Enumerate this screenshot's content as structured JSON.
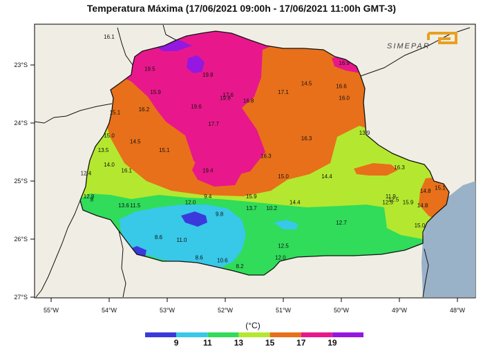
{
  "title": "Temperatura Máxima (17/06/2021 09:00h - 17/06/2021 11:00h GMT-3)",
  "logo": {
    "text": "SIMEPAR",
    "color": "#e8a020"
  },
  "axes": {
    "lat_ticks": [
      "23°S",
      "24°S",
      "25°S",
      "26°S",
      "27°S"
    ],
    "lon_ticks": [
      "55°W",
      "54°W",
      "53°W",
      "52°W",
      "51°W",
      "50°W",
      "49°W",
      "48°W"
    ]
  },
  "colorbar": {
    "unit": "(°C)",
    "tick_labels": [
      "9",
      "11",
      "13",
      "15",
      "17",
      "19"
    ],
    "colors": [
      "#3a3adc",
      "#38c8e8",
      "#30dc5a",
      "#b4e830",
      "#e8701a",
      "#e8188c",
      "#9418e0"
    ]
  },
  "chart_data": {
    "type": "heatmap",
    "title": "Temperatura Máxima (17/06/2021 09:00h - 17/06/2021 11:00h GMT-3)",
    "xlabel": "",
    "ylabel": "",
    "colorbar_unit": "(°C)",
    "xlim": [
      -55.3,
      -47.7
    ],
    "ylim": [
      -27.0,
      -22.5
    ],
    "colorbar_levels": [
      9,
      11,
      13,
      15,
      17,
      19
    ],
    "station_values": [
      {
        "lon": -53.3,
        "lat": -23.1,
        "value": "19.5"
      },
      {
        "lon": -52.3,
        "lat": -23.2,
        "value": "19.8"
      },
      {
        "lon": -53.2,
        "lat": -23.5,
        "value": "15.9"
      },
      {
        "lon": -51.95,
        "lat": -23.55,
        "value": "17.6"
      },
      {
        "lon": -52.0,
        "lat": -23.6,
        "value": "19.8"
      },
      {
        "lon": -51.6,
        "lat": -23.65,
        "value": "16.8"
      },
      {
        "lon": -51.0,
        "lat": -23.5,
        "value": "17.1"
      },
      {
        "lon": -50.6,
        "lat": -23.35,
        "value": "14.5"
      },
      {
        "lon": -50.0,
        "lat": -23.4,
        "value": "16.6"
      },
      {
        "lon": -49.95,
        "lat": -23.6,
        "value": "16.0"
      },
      {
        "lon": -49.95,
        "lat": -23.0,
        "value": "16.9"
      },
      {
        "lon": -53.9,
        "lat": -23.85,
        "value": "15.1"
      },
      {
        "lon": -53.4,
        "lat": -23.8,
        "value": "16.2"
      },
      {
        "lon": -52.5,
        "lat": -23.75,
        "value": "19.6"
      },
      {
        "lon": -52.2,
        "lat": -24.05,
        "value": "17.7"
      },
      {
        "lon": -54.0,
        "lat": -24.25,
        "value": "15.0"
      },
      {
        "lon": -53.55,
        "lat": -24.35,
        "value": "14.5"
      },
      {
        "lon": -54.1,
        "lat": -24.5,
        "value": "13.5"
      },
      {
        "lon": -53.05,
        "lat": -24.5,
        "value": "15.1"
      },
      {
        "lon": -50.6,
        "lat": -24.3,
        "value": "16.3"
      },
      {
        "lon": -49.6,
        "lat": -24.2,
        "value": "13.9"
      },
      {
        "lon": -51.3,
        "lat": -24.6,
        "value": "16.3"
      },
      {
        "lon": -54.0,
        "lat": -24.75,
        "value": "14.0"
      },
      {
        "lon": -53.7,
        "lat": -24.85,
        "value": "16.1"
      },
      {
        "lon": -52.3,
        "lat": -24.85,
        "value": "19.4"
      },
      {
        "lon": -54.4,
        "lat": -24.9,
        "value": "12.4"
      },
      {
        "lon": -51.0,
        "lat": -24.95,
        "value": "15.0"
      },
      {
        "lon": -50.25,
        "lat": -24.95,
        "value": "14.4"
      },
      {
        "lon": -49.0,
        "lat": -24.8,
        "value": "16.3"
      },
      {
        "lon": -48.55,
        "lat": -25.2,
        "value": "14.8"
      },
      {
        "lon": -48.3,
        "lat": -25.15,
        "value": "15.1"
      },
      {
        "lon": -54.35,
        "lat": -25.3,
        "value": "12.8"
      },
      {
        "lon": -52.3,
        "lat": -25.3,
        "value": "9.4"
      },
      {
        "lon": -51.55,
        "lat": -25.3,
        "value": "15.9"
      },
      {
        "lon": -49.15,
        "lat": -25.3,
        "value": "11.9"
      },
      {
        "lon": -49.1,
        "lat": -25.35,
        "value": "12.5"
      },
      {
        "lon": -49.2,
        "lat": -25.4,
        "value": "12.5"
      },
      {
        "lon": -48.85,
        "lat": -25.4,
        "value": "15.9"
      },
      {
        "lon": -48.6,
        "lat": -25.45,
        "value": "14.8"
      },
      {
        "lon": -53.75,
        "lat": -25.45,
        "value": "13.6"
      },
      {
        "lon": -53.55,
        "lat": -25.45,
        "value": "11.5"
      },
      {
        "lon": -52.6,
        "lat": -25.4,
        "value": "12.0"
      },
      {
        "lon": -50.8,
        "lat": -25.4,
        "value": "14.4"
      },
      {
        "lon": -51.55,
        "lat": -25.5,
        "value": "13.7"
      },
      {
        "lon": -51.2,
        "lat": -25.5,
        "value": "10.2"
      },
      {
        "lon": -52.1,
        "lat": -25.6,
        "value": "9.8"
      },
      {
        "lon": -50.0,
        "lat": -25.75,
        "value": "12.7"
      },
      {
        "lon": -48.65,
        "lat": -25.8,
        "value": "15.0"
      },
      {
        "lon": -53.15,
        "lat": -26.0,
        "value": "8.6"
      },
      {
        "lon": -52.75,
        "lat": -26.05,
        "value": "11.0"
      },
      {
        "lon": -51.0,
        "lat": -26.15,
        "value": "12.5"
      },
      {
        "lon": -52.45,
        "lat": -26.35,
        "value": "8.6"
      },
      {
        "lon": -52.05,
        "lat": -26.4,
        "value": "10.6"
      },
      {
        "lon": -51.05,
        "lat": -26.35,
        "value": "12.0"
      },
      {
        "lon": -51.75,
        "lat": -26.5,
        "value": "8.2"
      },
      {
        "lon": -54.3,
        "lat": -25.35,
        "value": "8"
      }
    ],
    "offmap_labels": [
      {
        "lon": -54.0,
        "lat": -22.55,
        "value": "16.1"
      }
    ]
  }
}
